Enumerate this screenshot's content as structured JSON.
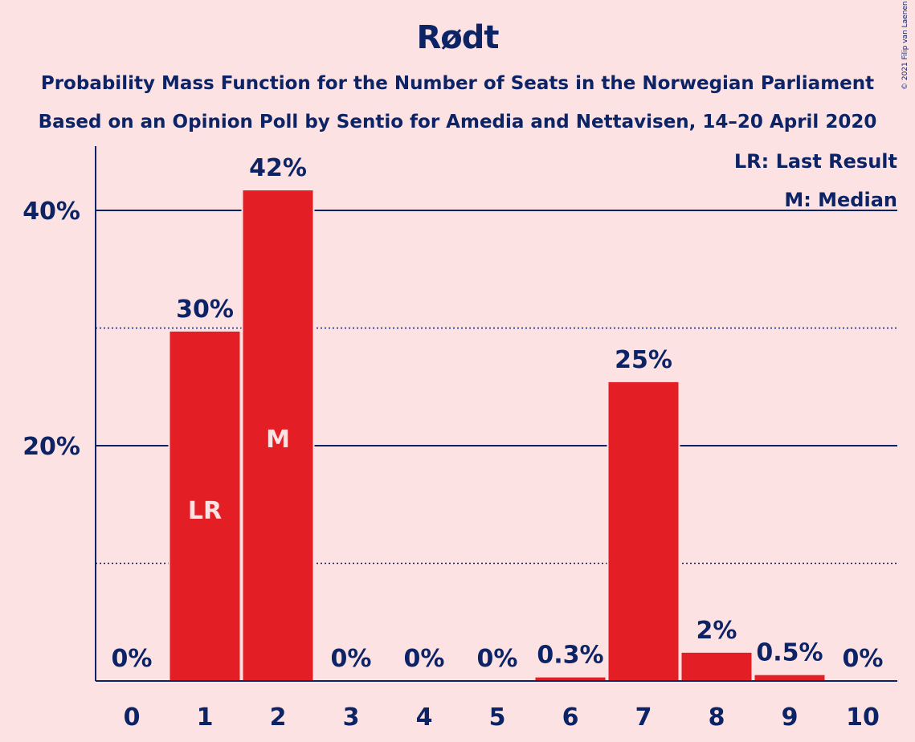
{
  "title": "Rødt",
  "subtitle_1": "Probability Mass Function for the Number of Seats in the Norwegian Parliament",
  "subtitle_2": "Based on an Opinion Poll by Sentio for Amedia and Nettavisen, 14–20 April 2020",
  "copyright": "© 2021 Filip van Laenen",
  "legend": {
    "last_result": "LR: Last Result",
    "median": "M: Median"
  },
  "colors": {
    "background": "#FDE2E3",
    "bar": "#E31E24",
    "text": "#0C2366"
  },
  "chart_data": {
    "type": "bar",
    "categories": [
      "0",
      "1",
      "2",
      "3",
      "4",
      "5",
      "6",
      "7",
      "8",
      "9",
      "10"
    ],
    "values": [
      0,
      29.7,
      41.7,
      0,
      0,
      0,
      0.3,
      25.4,
      2.4,
      0.5,
      0
    ],
    "data_labels": [
      "0%",
      "30%",
      "42%",
      "0%",
      "0%",
      "0%",
      "0.3%",
      "25%",
      "2%",
      "0.5%",
      "0%"
    ],
    "bar_marks": {
      "1": "LR",
      "2": "M"
    },
    "ylim": [
      0,
      45
    ],
    "y_ticks": [
      {
        "value": 20,
        "label": "20%"
      },
      {
        "value": 40,
        "label": "40%"
      }
    ],
    "minor_gridlines": [
      10,
      30
    ],
    "grid": true,
    "legend_position": "top-right"
  }
}
